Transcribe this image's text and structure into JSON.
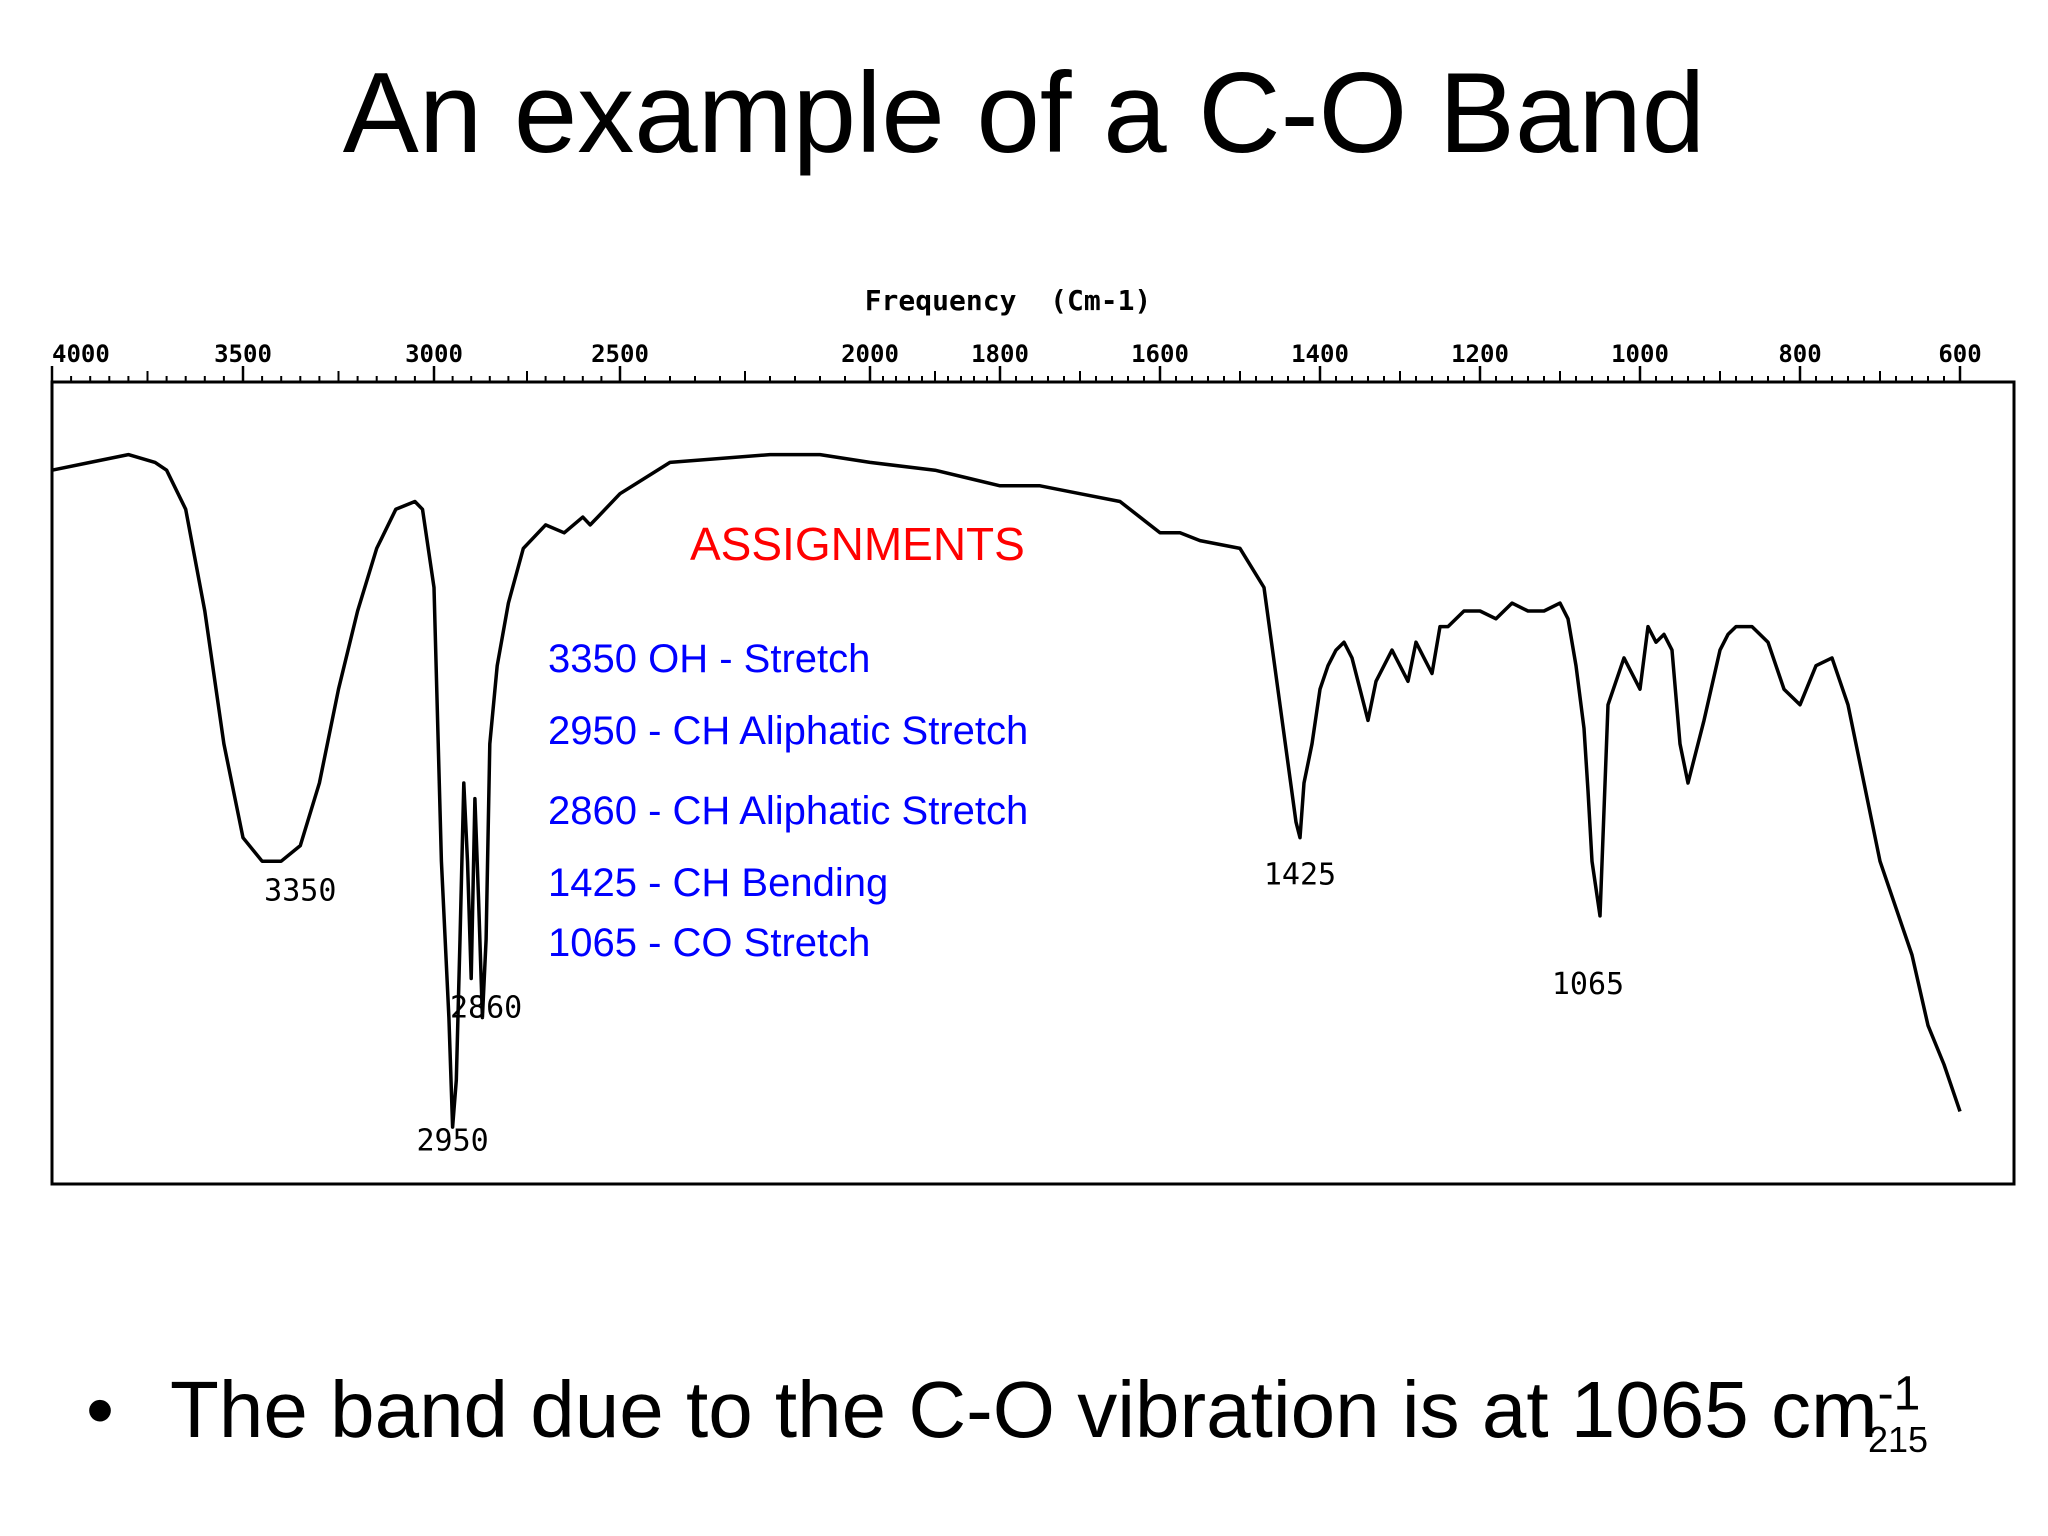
{
  "slide": {
    "title": "An example of a C-O Band",
    "bullet": {
      "symbol": "•",
      "text": "The band due to the C-O vibration is at 1065 cm",
      "superscript": "-1"
    },
    "page_number": "215"
  },
  "chart_data": {
    "type": "line",
    "title": "",
    "xlabel": "Frequency  (Cm-1)",
    "ylabel": "",
    "x_axis": {
      "position": "top",
      "reversed": true,
      "ticks": [
        4000,
        3500,
        3000,
        2500,
        2000,
        1800,
        1600,
        1400,
        1200,
        1000,
        800,
        600
      ],
      "tick_labels": [
        "4000",
        "3500",
        "3000",
        "2500",
        "2000",
        "1800",
        "1600",
        "1400",
        "1200",
        "1000",
        "800",
        "600"
      ]
    },
    "ylim": [
      0,
      100
    ],
    "grid": false,
    "colors": {
      "line": "#000000",
      "assignments_title": "#ff0000",
      "assignments_items": "#0000ff"
    },
    "series": [
      {
        "x": [
          4000,
          3900,
          3800,
          3730,
          3700,
          3650,
          3600,
          3550,
          3500,
          3450,
          3400,
          3350,
          3300,
          3250,
          3200,
          3150,
          3100,
          3050,
          3030,
          3000,
          2980,
          2960,
          2950,
          2940,
          2930,
          2920,
          2910,
          2900,
          2890,
          2880,
          2870,
          2860,
          2850,
          2830,
          2800,
          2760,
          2700,
          2650,
          2600,
          2580,
          2560,
          2500,
          2400,
          2200,
          2100,
          2000,
          1900,
          1850,
          1800,
          1750,
          1700,
          1650,
          1600,
          1575,
          1550,
          1500,
          1470,
          1450,
          1430,
          1425,
          1420,
          1410,
          1400,
          1390,
          1380,
          1370,
          1360,
          1350,
          1340,
          1330,
          1320,
          1310,
          1300,
          1290,
          1280,
          1270,
          1260,
          1250,
          1240,
          1220,
          1200,
          1180,
          1160,
          1140,
          1120,
          1100,
          1090,
          1080,
          1070,
          1065,
          1060,
          1050,
          1040,
          1020,
          1000,
          990,
          980,
          970,
          960,
          950,
          940,
          920,
          900,
          890,
          880,
          860,
          840,
          820,
          800,
          780,
          760,
          740,
          720,
          700,
          680,
          660,
          640,
          620,
          600
        ],
        "y": [
          90,
          91,
          92,
          91,
          90,
          85,
          72,
          55,
          43,
          40,
          40,
          42,
          50,
          62,
          72,
          80,
          85,
          86,
          85,
          75,
          40,
          20,
          6,
          12,
          30,
          50,
          40,
          25,
          48,
          35,
          20,
          30,
          55,
          65,
          73,
          80,
          83,
          82,
          84,
          83,
          84,
          87,
          91,
          92,
          92,
          91,
          90,
          89,
          88,
          88,
          87,
          86,
          82,
          82,
          81,
          80,
          75,
          60,
          45,
          43,
          50,
          55,
          62,
          65,
          67,
          68,
          66,
          62,
          58,
          63,
          65,
          67,
          65,
          63,
          68,
          66,
          64,
          70,
          70,
          72,
          72,
          71,
          73,
          72,
          72,
          73,
          71,
          65,
          57,
          49,
          40,
          33,
          60,
          66,
          62,
          70,
          68,
          69,
          67,
          55,
          50,
          58,
          67,
          69,
          70,
          70,
          68,
          62,
          60,
          65,
          66,
          60,
          50,
          40,
          34,
          28,
          19,
          14,
          8
        ]
      }
    ],
    "peak_labels": [
      {
        "x": 3350,
        "y": 35,
        "text": "3350"
      },
      {
        "x": 2950,
        "y": 3,
        "text": "2950"
      },
      {
        "x": 2860,
        "y": 20,
        "text": "2860"
      },
      {
        "x": 1425,
        "y": 37,
        "text": "1425"
      },
      {
        "x": 1065,
        "y": 23,
        "text": "1065"
      }
    ],
    "assignments": {
      "title": "ASSIGNMENTS",
      "items": [
        "3350 OH - Stretch",
        "2950 - CH Aliphatic Stretch",
        "2860 - CH Aliphatic Stretch",
        "1425 - CH Bending",
        "1065 - CO Stretch"
      ]
    }
  }
}
